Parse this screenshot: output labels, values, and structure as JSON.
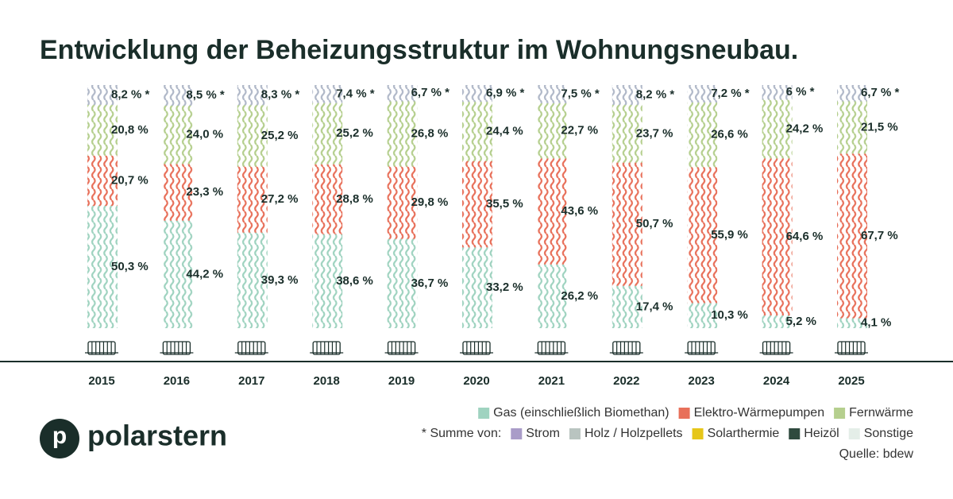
{
  "chart_data": {
    "type": "stacked-bar",
    "title": "Entwicklung der Beheizungsstruktur im Wohnungsneubau.",
    "categories": [
      "2015",
      "2016",
      "2017",
      "2018",
      "2019",
      "2020",
      "2021",
      "2022",
      "2023",
      "2024",
      "2025"
    ],
    "ylim": [
      0,
      100
    ],
    "series": [
      {
        "name": "Gas (einschließlich Biomethan)",
        "color": "#9fd3c0",
        "values": [
          50.3,
          44.2,
          39.3,
          38.6,
          36.7,
          33.2,
          26.2,
          17.4,
          10.3,
          5.2,
          4.1
        ],
        "value_labels": [
          "50,3 %",
          "44,2 %",
          "39,3 %",
          "38,6 %",
          "36,7 %",
          "33,2 %",
          "26,2 %",
          "17,4 %",
          "10,3 %",
          "5,2 %",
          "4,1 %"
        ]
      },
      {
        "name": "Elektro-Wärmepumpen",
        "color": "#e8705a",
        "values": [
          20.7,
          23.3,
          27.2,
          28.8,
          29.8,
          35.5,
          43.6,
          50.7,
          55.9,
          64.6,
          67.7
        ],
        "value_labels": [
          "20,7 %",
          "23,3 %",
          "27,2 %",
          "28,8 %",
          "29,8 %",
          "35,5 %",
          "43,6 %",
          "50,7 %",
          "55,9 %",
          "64,6 %",
          "67,7 %"
        ]
      },
      {
        "name": "Fernwärme",
        "color": "#b5cf8e",
        "values": [
          20.8,
          24.0,
          25.2,
          25.2,
          26.8,
          24.4,
          22.7,
          23.7,
          26.6,
          24.2,
          21.5
        ],
        "value_labels": [
          "20,8 %",
          "24,0 %",
          "25,2 %",
          "25,2 %",
          "26,8 %",
          "24,4 %",
          "22,7 %",
          "23,7 %",
          "26,6 %",
          "24,2 %",
          "21,5 %"
        ]
      }
    ],
    "summe": {
      "label": "* Summe von:",
      "color": "#b0b8c8",
      "values": [
        8.2,
        8.5,
        8.3,
        7.4,
        6.7,
        6.9,
        7.5,
        8.2,
        7.2,
        6,
        6.7
      ],
      "value_labels": [
        "8,2 % *",
        "8,5 % *",
        "8,3 % *",
        "7,4 % *",
        "6,7 % *",
        "6,9 % *",
        "7,5 % *",
        "8,2 % *",
        "7,2 % *",
        "6 % *",
        "6,7 % *"
      ],
      "components": [
        {
          "name": "Strom",
          "color": "#a99cc8"
        },
        {
          "name": "Holz / Holzpellets",
          "color": "#b9c4c0"
        },
        {
          "name": "Solarthermie",
          "color": "#e6c619"
        },
        {
          "name": "Heizöl",
          "color": "#2f4a3e"
        },
        {
          "name": "Sonstige",
          "color": "#e4eee8"
        }
      ]
    },
    "source": "Quelle: bdew",
    "logo": {
      "letter": "p",
      "name": "polarstern"
    }
  }
}
